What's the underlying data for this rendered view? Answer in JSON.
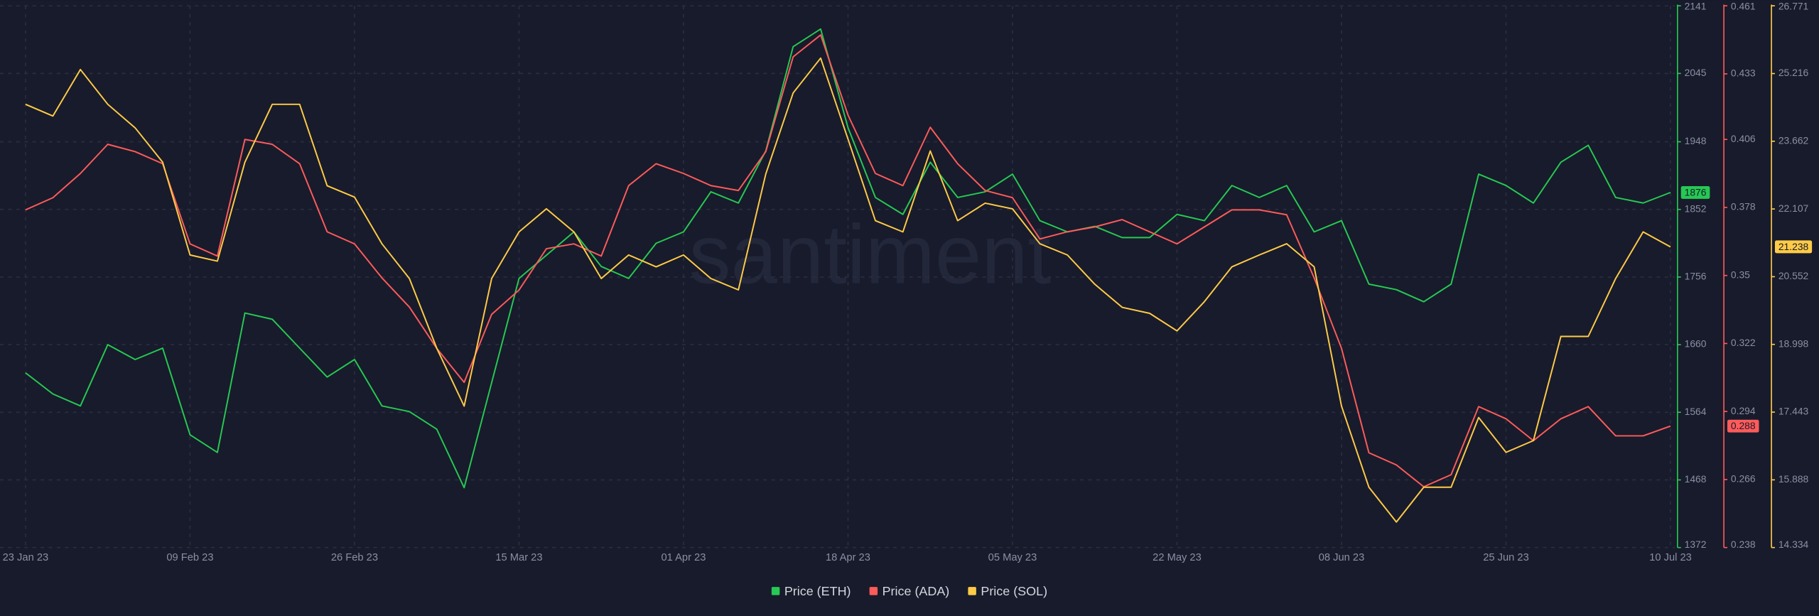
{
  "chart_data": {
    "type": "line",
    "watermark": "santiment",
    "categories": [
      "23 Jan 23",
      null,
      null,
      null,
      null,
      null,
      "09 Feb 23",
      null,
      null,
      null,
      null,
      null,
      "26 Feb 23",
      null,
      null,
      null,
      null,
      null,
      "15 Mar 23",
      null,
      null,
      null,
      null,
      null,
      "01 Apr 23",
      null,
      null,
      null,
      null,
      null,
      "18 Apr 23",
      null,
      null,
      null,
      null,
      null,
      "05 May 23",
      null,
      null,
      null,
      null,
      null,
      "22 May 23",
      null,
      null,
      null,
      null,
      null,
      "08 Jun 23",
      null,
      null,
      null,
      null,
      null,
      "25 Jun 23",
      null,
      null,
      null,
      null,
      null,
      "10 Jul 23"
    ],
    "ylim": [
      1372,
      2141
    ],
    "yticks": [
      1372,
      1468,
      1564,
      1660,
      1756,
      1852,
      1948,
      2045,
      2141
    ],
    "y2lim": [
      0.238,
      0.461
    ],
    "y2ticks": [
      0.238,
      0.266,
      0.294,
      0.322,
      0.35,
      0.378,
      0.406,
      0.433,
      0.461
    ],
    "y3lim": [
      14.334,
      26.771
    ],
    "y3ticks": [
      14.334,
      15.888,
      17.443,
      18.998,
      20.552,
      22.107,
      23.662,
      25.216,
      26.771
    ],
    "grid": true,
    "series": [
      {
        "name": "Price (ETH)",
        "color": "#26c953",
        "axis": "y",
        "last_value": 1876,
        "values": [
          1620,
          1590,
          1573,
          1660,
          1639,
          1655,
          1532,
          1507,
          1705,
          1696,
          1655,
          1614,
          1639,
          1573,
          1565,
          1540,
          1457,
          1606,
          1754,
          1787,
          1820,
          1771,
          1754,
          1804,
          1820,
          1877,
          1861,
          1935,
          2083,
          2108,
          1968,
          1869,
          1845,
          1919,
          1869,
          1877,
          1902,
          1836,
          1820,
          1828,
          1812,
          1812,
          1845,
          1836,
          1886,
          1869,
          1886,
          1820,
          1836,
          1746,
          1738,
          1721,
          1746,
          1902,
          1886,
          1861,
          1919,
          1943,
          1869,
          1861,
          1876
        ]
      },
      {
        "name": "Price (ADA)",
        "color": "#ff5b5b",
        "axis": "y2",
        "last_value": 0.288,
        "values": [
          0.377,
          0.382,
          0.392,
          0.404,
          0.401,
          0.396,
          0.363,
          0.358,
          0.406,
          0.404,
          0.396,
          0.368,
          0.363,
          0.349,
          0.337,
          0.32,
          0.306,
          0.334,
          0.344,
          0.361,
          0.363,
          0.358,
          0.387,
          0.396,
          0.392,
          0.387,
          0.385,
          0.401,
          0.44,
          0.449,
          0.416,
          0.392,
          0.387,
          0.411,
          0.396,
          0.385,
          0.382,
          0.365,
          0.368,
          0.37,
          0.373,
          0.368,
          0.363,
          0.37,
          0.377,
          0.377,
          0.375,
          0.349,
          0.32,
          0.277,
          0.272,
          0.263,
          0.268,
          0.296,
          0.291,
          0.282,
          0.291,
          0.296,
          0.284,
          0.284,
          0.288
        ]
      },
      {
        "name": "Price (SOL)",
        "color": "#ffcb47",
        "axis": "y3",
        "last_value": 21.238,
        "values": [
          24.51,
          24.24,
          25.31,
          24.51,
          23.97,
          23.18,
          21.05,
          20.91,
          23.18,
          24.51,
          24.51,
          22.64,
          22.38,
          21.31,
          20.51,
          18.91,
          17.58,
          20.51,
          21.58,
          22.11,
          21.58,
          20.51,
          21.05,
          20.78,
          21.05,
          20.51,
          20.25,
          22.91,
          24.77,
          25.57,
          23.71,
          21.84,
          21.58,
          23.44,
          21.84,
          22.24,
          22.11,
          21.31,
          21.05,
          20.38,
          19.85,
          19.71,
          19.31,
          19.98,
          20.78,
          21.05,
          21.31,
          20.78,
          17.58,
          15.72,
          14.92,
          15.72,
          15.72,
          17.32,
          16.52,
          16.79,
          19.18,
          19.18,
          20.51,
          21.58,
          21.238
        ]
      }
    ]
  }
}
